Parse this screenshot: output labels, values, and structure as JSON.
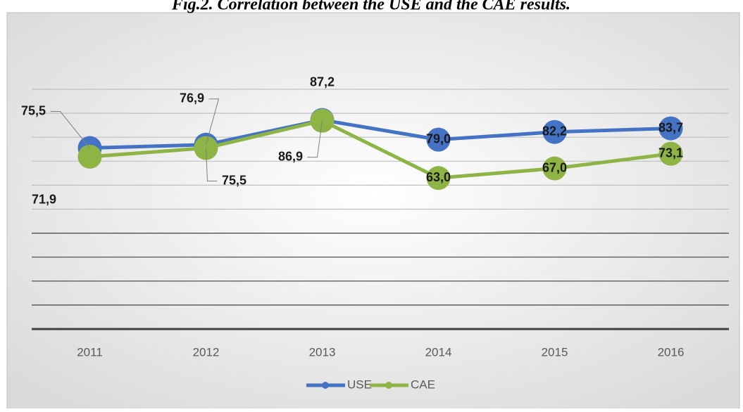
{
  "chart_data": {
    "type": "line",
    "title": "Fig.2. Correlation between the USE and the CAE results.",
    "categories": [
      "2011",
      "2012",
      "2013",
      "2014",
      "2015",
      "2016"
    ],
    "series": [
      {
        "name": "USE",
        "color": "#4472c4",
        "values": [
          75.5,
          76.9,
          87.2,
          79.0,
          82.2,
          83.7
        ],
        "value_labels": [
          "75,5",
          "76,9",
          "87,2",
          "79,0",
          "82,2",
          "83,7"
        ]
      },
      {
        "name": "CAE",
        "color": "#8fb446",
        "values": [
          71.9,
          75.5,
          86.9,
          63.0,
          67.0,
          73.1
        ],
        "value_labels": [
          "71,9",
          "75,5",
          "86,9",
          "63,0",
          "67,0",
          "73,1"
        ]
      }
    ],
    "ylim": [
      0,
      100
    ],
    "yticks": [
      0,
      10,
      20,
      30,
      40,
      50,
      60,
      70,
      80,
      90,
      100
    ],
    "grid": true,
    "legend": "bottom"
  }
}
